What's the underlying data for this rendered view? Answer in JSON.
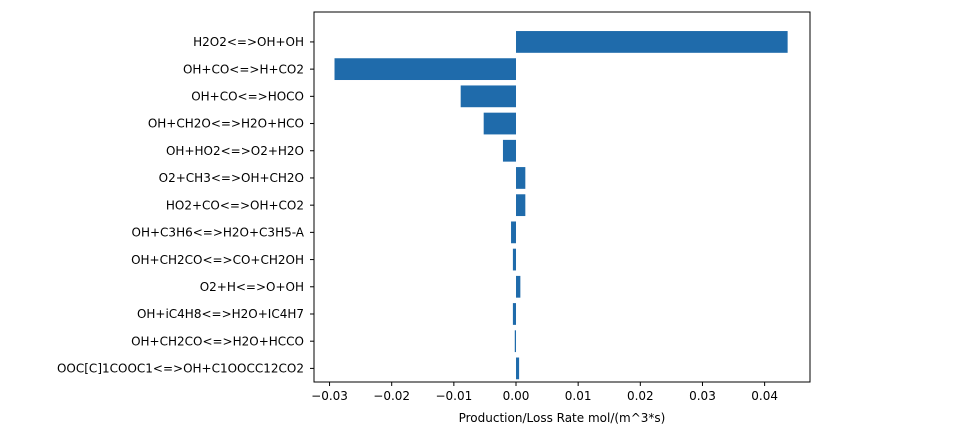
{
  "chart_data": {
    "type": "bar",
    "orientation": "horizontal",
    "categories": [
      "H2O2<=>OH+OH",
      "OH+CO<=>H+CO2",
      "OH+CO<=>HOCO",
      "OH+CH2O<=>H2O+HCO",
      "OH+HO2<=>O2+H2O",
      "O2+CH3<=>OH+CH2O",
      "HO2+CO<=>OH+CO2",
      "OH+C3H6<=>H2O+C3H5-A",
      "OH+CH2CO<=>CO+CH2OH",
      "O2+H<=>O+OH",
      "OH+iC4H8<=>H2O+IC4H7",
      "OH+CH2CO<=>H2O+HCCO",
      "OOC[C]1COOC1<=>OH+C1OOCC12CO2"
    ],
    "values": [
      0.0437,
      -0.0292,
      -0.0089,
      -0.0052,
      -0.0021,
      0.0015,
      0.0015,
      -0.0008,
      -0.0005,
      0.0007,
      -0.0005,
      -0.0002,
      0.0005
    ],
    "xlabel": "Production/Loss Rate mol/(m^3*s)",
    "ylabel": "",
    "title": "",
    "xlim": [
      -0.0325,
      0.0473
    ],
    "xticks": [
      -0.03,
      -0.02,
      -0.01,
      0.0,
      0.01,
      0.02,
      0.03,
      0.04
    ],
    "xtick_labels": [
      "−0.03",
      "−0.02",
      "−0.01",
      "0.00",
      "0.01",
      "0.02",
      "0.03",
      "0.04"
    ],
    "grid": false,
    "bar_color": "#1f6bab"
  }
}
